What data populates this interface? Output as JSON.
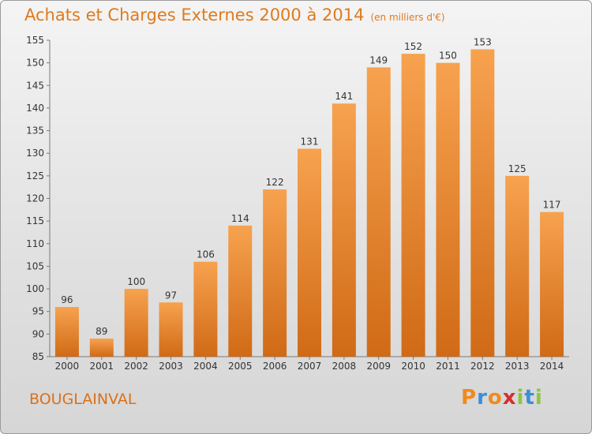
{
  "header": {
    "title": "Achats et Charges Externes 2000 à 2014",
    "unit": "(en milliers d'€)"
  },
  "footer": {
    "commune": "BOUGLAINVAL",
    "logo_text": "Proxiti"
  },
  "colors": {
    "bar_top": "#f7a24f",
    "bar_bottom": "#d06a16",
    "title": "#e07a1c",
    "logo": [
      "#f08a1e",
      "#3b8fd6",
      "#f08a1e",
      "#d62e2e",
      "#8cc63f",
      "#3b8fd6",
      "#8cc63f"
    ]
  },
  "chart_data": {
    "type": "bar",
    "title": "Achats et Charges Externes 2000 à 2014",
    "subtitle": "(en milliers d'€)",
    "categories": [
      "2000",
      "2001",
      "2002",
      "2003",
      "2004",
      "2005",
      "2006",
      "2007",
      "2008",
      "2009",
      "2010",
      "2011",
      "2012",
      "2013",
      "2014"
    ],
    "values": [
      96,
      89,
      100,
      97,
      106,
      114,
      122,
      131,
      141,
      149,
      152,
      150,
      153,
      125,
      117
    ],
    "ylim": [
      85,
      155
    ],
    "yticks": [
      85,
      90,
      95,
      100,
      105,
      110,
      115,
      120,
      125,
      130,
      135,
      140,
      145,
      150,
      155
    ],
    "grid": false,
    "legend": "none"
  }
}
